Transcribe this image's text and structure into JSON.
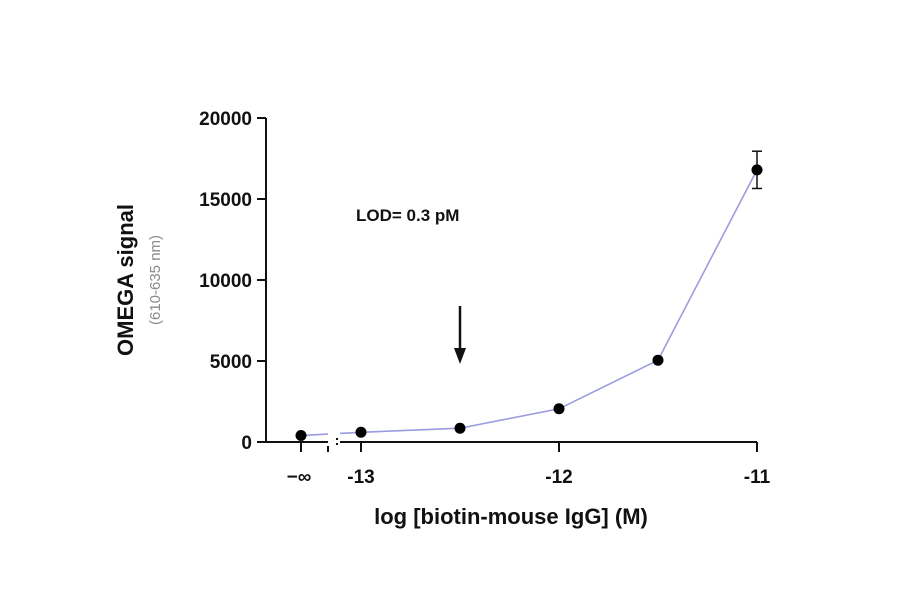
{
  "chart_data": {
    "type": "line",
    "xlabel": "log [biotin-mouse IgG] (M)",
    "ylabel": "OMEGA signal",
    "ylabel_sub": "(610-635 nm)",
    "ylim": [
      0,
      20000
    ],
    "yticks": [
      {
        "value": 0,
        "label": "0"
      },
      {
        "value": 5000,
        "label": "5000"
      },
      {
        "value": 10000,
        "label": "10000"
      },
      {
        "value": 15000,
        "label": "15000"
      },
      {
        "value": 20000,
        "label": "20000"
      }
    ],
    "xlim": [
      -13.3,
      -11
    ],
    "xticks": [
      {
        "value": -13,
        "label": "-13"
      },
      {
        "value": -12,
        "label": "-12"
      },
      {
        "value": -11,
        "label": "-11"
      }
    ],
    "zero_label": "−∞",
    "axis_break": true,
    "grid": false,
    "line_color": "#9b9be0",
    "marker_color": "#000000",
    "zero_point": {
      "y": 400
    },
    "series": [
      {
        "x": [
          -13,
          -12.5,
          -12,
          -11.5,
          -11
        ],
        "y": [
          600,
          850,
          2050,
          5050,
          16800
        ],
        "y_err": [
          0,
          0,
          0,
          0,
          1150
        ]
      }
    ],
    "annotations": [
      {
        "text": "LOD= 0.3 pM"
      }
    ],
    "lod_arrow_x": -12.5
  }
}
